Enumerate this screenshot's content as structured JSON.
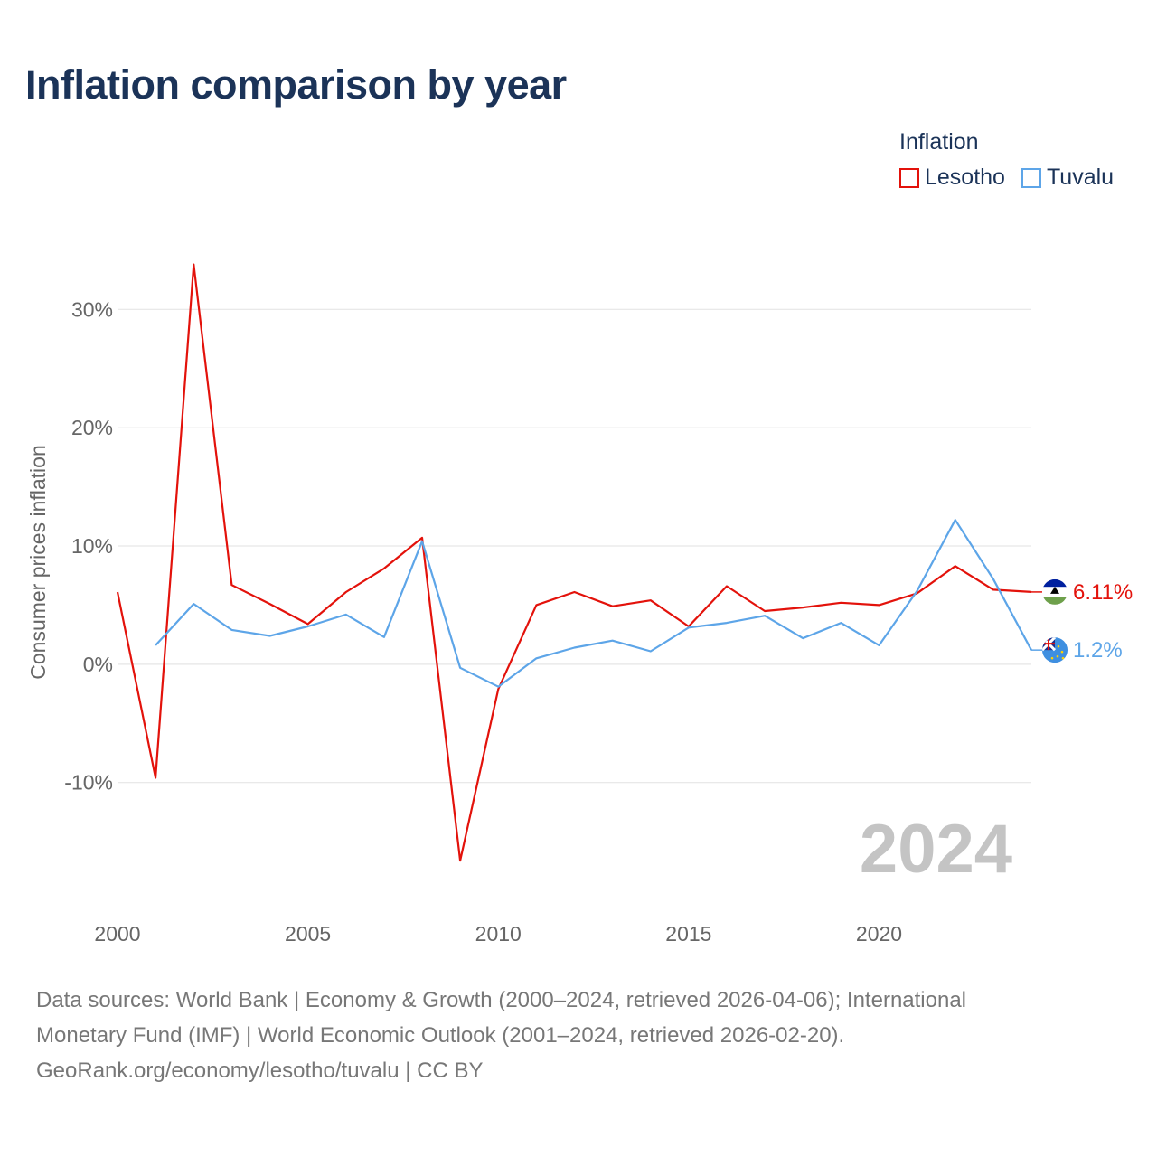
{
  "title": "Inflation comparison by year",
  "legend": {
    "title": "Inflation",
    "items": [
      {
        "label": "Lesotho",
        "color": "#e3120b"
      },
      {
        "label": "Tuvalu",
        "color": "#5da5e8"
      }
    ]
  },
  "chart_data": {
    "type": "line",
    "title": "Inflation comparison by year",
    "ylabel": "Consumer prices inflation",
    "xlabel": "",
    "xlim": [
      2000,
      2024
    ],
    "ylim": [
      -19.5,
      34
    ],
    "yticks": [
      -10,
      0,
      10,
      20,
      30
    ],
    "ytick_labels": [
      "-10%",
      "0%",
      "10%",
      "20%",
      "30%"
    ],
    "xticks": [
      2000,
      2005,
      2010,
      2015,
      2020
    ],
    "xtick_labels": [
      "2000",
      "2005",
      "2010",
      "2015",
      "2020"
    ],
    "watermark_year": "2024",
    "series": [
      {
        "name": "Lesotho",
        "color": "#e3120b",
        "x": [
          2000,
          2001,
          2002,
          2003,
          2004,
          2005,
          2006,
          2007,
          2008,
          2009,
          2010,
          2011,
          2012,
          2013,
          2014,
          2015,
          2016,
          2017,
          2018,
          2019,
          2020,
          2021,
          2022,
          2023,
          2024
        ],
        "values": [
          6.1,
          -9.6,
          33.8,
          6.7,
          5.1,
          3.4,
          6.1,
          8.1,
          10.7,
          -16.6,
          -2.1,
          5.0,
          6.1,
          4.9,
          5.4,
          3.2,
          6.6,
          4.5,
          4.8,
          5.2,
          5.0,
          6.0,
          8.3,
          6.3,
          6.11
        ],
        "end_label": "6.11%"
      },
      {
        "name": "Tuvalu",
        "color": "#5da5e8",
        "x": [
          2001,
          2002,
          2003,
          2004,
          2005,
          2006,
          2007,
          2008,
          2009,
          2010,
          2011,
          2012,
          2013,
          2014,
          2015,
          2016,
          2017,
          2018,
          2019,
          2020,
          2021,
          2022,
          2023,
          2024
        ],
        "values": [
          1.6,
          5.1,
          2.9,
          2.4,
          3.2,
          4.2,
          2.3,
          10.4,
          -0.3,
          -1.9,
          0.5,
          1.4,
          2.0,
          1.1,
          3.1,
          3.5,
          4.1,
          2.2,
          3.5,
          1.6,
          6.2,
          12.2,
          7.2,
          1.2
        ],
        "end_label": "1.2%"
      }
    ]
  },
  "footer": {
    "line1": "Data sources: World Bank | Economy & Growth (2000–2024, retrieved 2026-04-06); International",
    "line2": "Monetary Fund (IMF) | World Economic Outlook (2001–2024, retrieved 2026-02-20).",
    "line3": "GeoRank.org/economy/lesotho/tuvalu | CC BY"
  }
}
